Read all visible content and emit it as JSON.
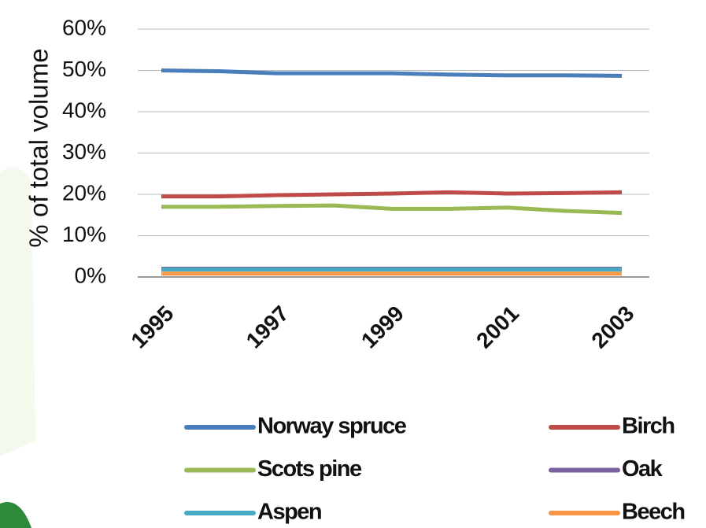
{
  "chart_data": {
    "type": "line",
    "y_label": "% of total volume",
    "categories": [
      "1995",
      null,
      "1997",
      null,
      "1999",
      null,
      "2001",
      null,
      "2003"
    ],
    "series": [
      {
        "name": "Norway spruce",
        "color": "#4a7ebb",
        "values": [
          50,
          49.8,
          49.3,
          49.3,
          49.3,
          49,
          48.8,
          48.8,
          48.7
        ]
      },
      {
        "name": "Birch",
        "color": "#be4b48",
        "values": [
          19.5,
          19.5,
          19.8,
          20,
          20.2,
          20.5,
          20.2,
          20.3,
          20.5
        ]
      },
      {
        "name": "Scots pine",
        "color": "#98b954",
        "values": [
          17,
          17,
          17.2,
          17.3,
          16.5,
          16.5,
          16.8,
          16,
          15.5
        ]
      },
      {
        "name": "Oak",
        "color": "#7d60a0",
        "values": [
          2,
          2,
          2,
          2,
          2,
          2,
          2,
          2,
          2
        ]
      },
      {
        "name": "Aspen",
        "color": "#46aac5",
        "values": [
          1.8,
          1.8,
          1.8,
          1.8,
          1.8,
          1.8,
          1.8,
          1.8,
          1.8
        ]
      },
      {
        "name": "Beech",
        "color": "#f79646",
        "values": [
          0.8,
          0.8,
          0.8,
          0.8,
          0.8,
          0.8,
          0.8,
          0.8,
          0.8
        ]
      }
    ],
    "ylim": [
      0,
      60
    ],
    "yticks": [
      {
        "value": 0,
        "label": "0%"
      },
      {
        "value": 10,
        "label": "10%"
      },
      {
        "value": 20,
        "label": "20%"
      },
      {
        "value": 30,
        "label": "30%"
      },
      {
        "value": 40,
        "label": "40%"
      },
      {
        "value": 50,
        "label": "50%"
      },
      {
        "value": 60,
        "label": "60%"
      }
    ],
    "grid": true
  }
}
